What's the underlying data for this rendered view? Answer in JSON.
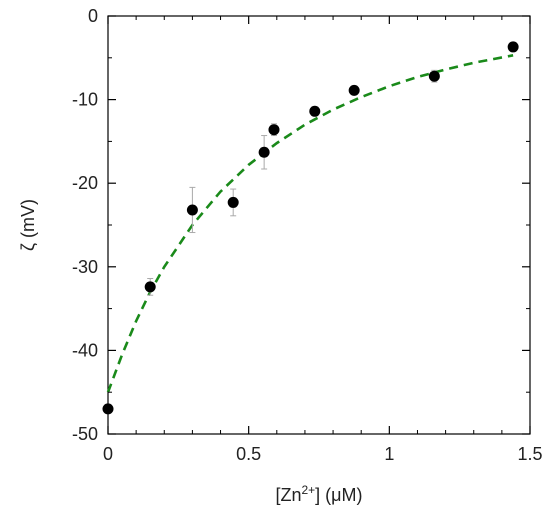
{
  "chart_data": {
    "type": "scatter",
    "title": "",
    "xlabel": "[Zn2+] (μM)",
    "xlabel_parts": {
      "pre": "[Zn",
      "sup": "2+",
      "post": "] (μM)"
    },
    "ylabel": "ζ (mV)",
    "xlim": [
      0,
      1.5
    ],
    "ylim": [
      -50,
      0
    ],
    "xticks": [
      0,
      0.5,
      1,
      1.5
    ],
    "xtick_labels": [
      "0",
      "0.5",
      "1",
      "1.5"
    ],
    "yticks": [
      -50,
      -40,
      -30,
      -20,
      -10,
      0
    ],
    "ytick_labels": [
      "-50",
      "-40",
      "-30",
      "-20",
      "-10",
      "0"
    ],
    "grid": false,
    "series": [
      {
        "type": "scatter",
        "color": "#000000",
        "points": [
          {
            "x": 0.0,
            "y": -47.0,
            "err": 0.0
          },
          {
            "x": 0.15,
            "y": -32.4,
            "err": 1.0
          },
          {
            "x": 0.3,
            "y": -23.2,
            "err": 2.7
          },
          {
            "x": 0.445,
            "y": -22.3,
            "err": 1.6
          },
          {
            "x": 0.555,
            "y": -16.3,
            "err": 2.0
          },
          {
            "x": 0.59,
            "y": -13.6,
            "err": 0.7
          },
          {
            "x": 0.735,
            "y": -11.4,
            "err": 0.4
          },
          {
            "x": 0.875,
            "y": -8.9,
            "err": 0.3
          },
          {
            "x": 1.16,
            "y": -7.2,
            "err": 0.7
          },
          {
            "x": 1.44,
            "y": -3.7,
            "err": 0.2
          }
        ]
      },
      {
        "type": "line",
        "style": "dashed",
        "color": "#1a8a1a",
        "x": [
          0,
          0.05,
          0.1,
          0.15,
          0.2,
          0.3,
          0.4,
          0.5,
          0.6,
          0.7,
          0.8,
          0.9,
          1.0,
          1.1,
          1.2,
          1.3,
          1.44
        ],
        "y": [
          -45.0,
          -40.5,
          -36.5,
          -33.0,
          -30.0,
          -25.0,
          -21.0,
          -17.8,
          -15.2,
          -13.0,
          -11.2,
          -9.7,
          -8.4,
          -7.3,
          -6.4,
          -5.6,
          -4.7
        ]
      }
    ]
  }
}
